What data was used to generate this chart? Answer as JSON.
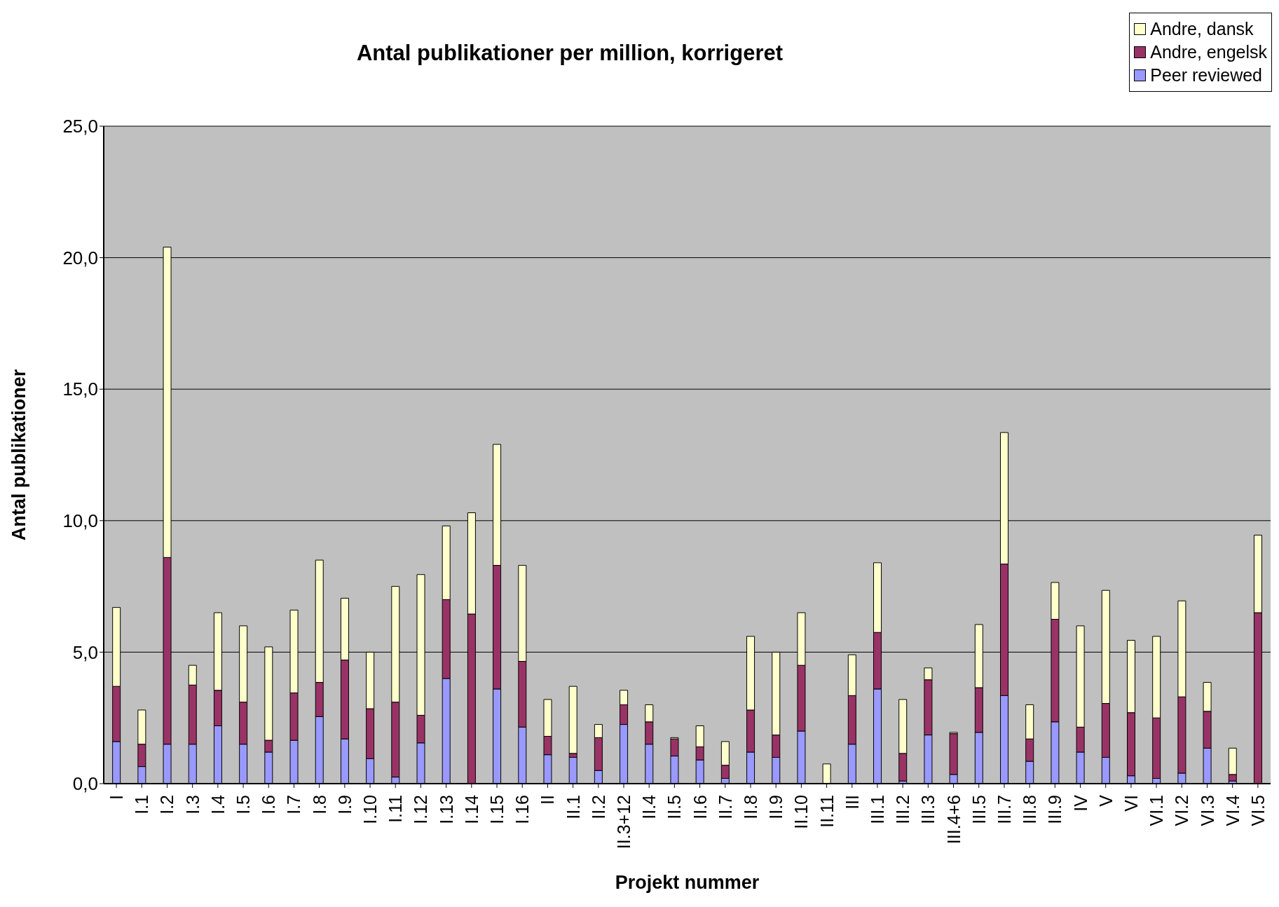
{
  "chart_data": {
    "type": "bar",
    "title": "Antal publikationer per million, korrigeret",
    "xlabel": "Projekt nummer",
    "ylabel": "Antal publikationer",
    "stacked": true,
    "grid": "y",
    "legend": "top right",
    "categories": [
      "I",
      "I.1",
      "I.2",
      "I.3",
      "I.4",
      "I.5",
      "I.6",
      "I.7",
      "I.8",
      "I.9",
      "I.10",
      "I.11",
      "I.12",
      "I.13",
      "I.14",
      "I.15",
      "I.16",
      "II",
      "II.1",
      "II.2",
      "II.3+12",
      "II.4",
      "II.5",
      "II.6",
      "II.7",
      "II.8",
      "II.9",
      "II.10",
      "II.11",
      "III",
      "III.1",
      "III.2",
      "III.3",
      "III.4+6",
      "III.5",
      "III.7",
      "III.8",
      "III.9",
      "IV",
      "V",
      "VI",
      "VI.1",
      "VI.2",
      "VI.3",
      "VI.4",
      "VI.5"
    ],
    "ylim": [
      0,
      25
    ],
    "yticks": [
      {
        "value": 0,
        "label": "0,0"
      },
      {
        "value": 5,
        "label": "5,0"
      },
      {
        "value": 10,
        "label": "10,0"
      },
      {
        "value": 15,
        "label": "15,0"
      },
      {
        "value": 20,
        "label": "20,0"
      },
      {
        "value": 25,
        "label": "25,0"
      }
    ],
    "series": [
      {
        "name": "Peer reviewed",
        "color": "#9999ff",
        "values": [
          1.6,
          0.65,
          1.5,
          1.5,
          2.2,
          1.5,
          1.2,
          1.65,
          2.55,
          1.7,
          0.95,
          0.25,
          1.55,
          4.0,
          0,
          3.6,
          2.15,
          1.1,
          1.0,
          0.5,
          2.25,
          1.5,
          1.05,
          0.9,
          0.2,
          1.2,
          1.0,
          2.0,
          0,
          1.5,
          3.6,
          0.1,
          1.85,
          0.35,
          1.95,
          3.35,
          0.85,
          2.35,
          1.2,
          1.0,
          0.3,
          0.2,
          0.4,
          1.35,
          0.1,
          0
        ]
      },
      {
        "name": "Andre, engelsk",
        "color": "#993366",
        "values": [
          2.1,
          0.85,
          7.1,
          2.25,
          1.35,
          1.6,
          0.45,
          1.8,
          1.3,
          3.0,
          1.9,
          2.85,
          1.05,
          3.0,
          6.45,
          4.7,
          2.5,
          0.7,
          0.15,
          1.25,
          0.75,
          0.85,
          0.65,
          0.5,
          0.5,
          1.6,
          0.85,
          2.5,
          0,
          1.85,
          2.15,
          1.05,
          2.1,
          1.55,
          1.7,
          5.0,
          0.85,
          3.9,
          0.95,
          2.05,
          2.4,
          2.3,
          2.9,
          1.4,
          0.25,
          6.5
        ]
      },
      {
        "name": "Andre, dansk",
        "color": "#ffffcc",
        "values": [
          3.0,
          1.3,
          11.8,
          0.75,
          2.95,
          2.9,
          3.55,
          3.15,
          4.65,
          2.35,
          2.15,
          4.4,
          5.35,
          2.8,
          3.85,
          4.6,
          3.65,
          1.4,
          2.55,
          0.5,
          0.55,
          0.65,
          0.05,
          0.8,
          0.9,
          2.8,
          3.15,
          2.0,
          0.75,
          1.55,
          2.65,
          2.05,
          0.45,
          0.05,
          2.4,
          5.0,
          1.3,
          1.4,
          3.85,
          4.3,
          2.75,
          3.1,
          3.65,
          1.1,
          1.0,
          2.95
        ]
      }
    ]
  }
}
